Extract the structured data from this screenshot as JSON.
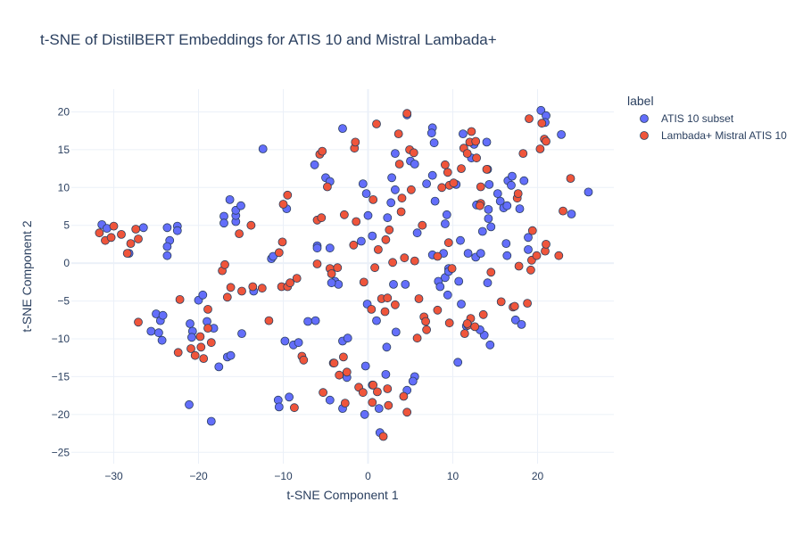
{
  "chart_data": {
    "type": "scatter",
    "title": "t-SNE of DistilBERT Embeddings for ATIS 10 and Mistral Lambada+",
    "xlabel": "t-SNE Component 1",
    "ylabel": "t-SNE Component 2",
    "xlim": [
      -35,
      29
    ],
    "ylim": [
      -26.5,
      23
    ],
    "x_ticks": [
      -30,
      -20,
      -10,
      0,
      10,
      20
    ],
    "x_tick_labels": [
      "−30",
      "−20",
      "−10",
      "0",
      "10",
      "20"
    ],
    "y_ticks": [
      -25,
      -20,
      -15,
      -10,
      -5,
      0,
      5,
      10,
      15,
      20
    ],
    "y_tick_labels": [
      "−25",
      "−20",
      "−15",
      "−10",
      "−5",
      "0",
      "5",
      "10",
      "15",
      "20"
    ],
    "grid": true,
    "legend": {
      "title": "label",
      "placement": "right"
    },
    "series": [
      {
        "name": "ATIS 10 subset",
        "color": "#636efa",
        "points": [
          [
            -31.4,
            5.1
          ],
          [
            -30.8,
            4.6
          ],
          [
            -28.2,
            1.3
          ],
          [
            -26.5,
            4.7
          ],
          [
            -23.7,
            4.7
          ],
          [
            -23.4,
            3.0
          ],
          [
            -23.7,
            2.2
          ],
          [
            -23.7,
            1.0
          ],
          [
            -22.5,
            4.9
          ],
          [
            -22.5,
            4.3
          ],
          [
            -17.0,
            6.2
          ],
          [
            -17.0,
            5.3
          ],
          [
            -15.6,
            5.5
          ],
          [
            -15.6,
            6.3
          ],
          [
            -15.6,
            7.0
          ],
          [
            -15.0,
            7.6
          ],
          [
            -16.3,
            8.4
          ],
          [
            -12.4,
            15.1
          ],
          [
            -11.4,
            0.6
          ],
          [
            -11.2,
            0.9
          ],
          [
            -13.5,
            -3.7
          ],
          [
            -9.6,
            7.2
          ],
          [
            -25.0,
            -6.7
          ],
          [
            -24.5,
            -7.6
          ],
          [
            -24.2,
            -6.9
          ],
          [
            -25.6,
            -9.0
          ],
          [
            -24.7,
            -9.2
          ],
          [
            -24.3,
            -10.2
          ],
          [
            -20.0,
            -4.9
          ],
          [
            -19.5,
            -4.2
          ],
          [
            -21.0,
            -8.0
          ],
          [
            -20.7,
            -9.0
          ],
          [
            -20.8,
            -9.8
          ],
          [
            -19.0,
            -7.7
          ],
          [
            -18.2,
            -8.6
          ],
          [
            -17.6,
            -13.7
          ],
          [
            -16.6,
            -12.4
          ],
          [
            -16.2,
            -12.2
          ],
          [
            -14.9,
            -9.3
          ],
          [
            -21.1,
            -18.7
          ],
          [
            -18.5,
            -20.9
          ],
          [
            -9.8,
            -10.3
          ],
          [
            -8.8,
            -10.8
          ],
          [
            -8.2,
            -10.5
          ],
          [
            -10.6,
            -18.1
          ],
          [
            -10.5,
            -19.0
          ],
          [
            -9.3,
            -17.7
          ],
          [
            -7.1,
            -7.7
          ],
          [
            -6.2,
            -7.6
          ],
          [
            -6.0,
            2.3
          ],
          [
            -6.0,
            2.0
          ],
          [
            -4.5,
            2.0
          ],
          [
            -3.9,
            -2.4
          ],
          [
            -3.5,
            -2.8
          ],
          [
            -4.3,
            -2.6
          ],
          [
            -3.0,
            17.8
          ],
          [
            -5.0,
            11.3
          ],
          [
            -6.3,
            13.0
          ],
          [
            -4.5,
            10.8
          ],
          [
            -3.0,
            -10.3
          ],
          [
            -2.4,
            -9.9
          ],
          [
            -4.5,
            -18.1
          ],
          [
            -3.0,
            -19.2
          ],
          [
            -2.5,
            -15.1
          ],
          [
            -0.8,
            2.9
          ],
          [
            -0.6,
            10.5
          ],
          [
            -0.2,
            9.2
          ],
          [
            0.0,
            6.3
          ],
          [
            0.5,
            3.6
          ],
          [
            0.5,
            -16.1
          ],
          [
            -0.3,
            -13.6
          ],
          [
            -0.4,
            -20.0
          ],
          [
            -0.1,
            -5.4
          ],
          [
            1.0,
            -7.6
          ],
          [
            1.3,
            -19.2
          ],
          [
            1.4,
            -22.4
          ],
          [
            2.2,
            -11.1
          ],
          [
            2.1,
            -14.7
          ],
          [
            2.3,
            6.0
          ],
          [
            2.8,
            11.3
          ],
          [
            2.7,
            8.0
          ],
          [
            3.0,
            -2.8
          ],
          [
            3.3,
            -9.1
          ],
          [
            3.2,
            14.5
          ],
          [
            3.2,
            9.7
          ],
          [
            4.6,
            19.6
          ],
          [
            4.4,
            -2.8
          ],
          [
            5.0,
            13.5
          ],
          [
            5.5,
            13.1
          ],
          [
            5.5,
            -15.0
          ],
          [
            5.3,
            -15.6
          ],
          [
            4.6,
            -16.8
          ],
          [
            5.8,
            4.0
          ],
          [
            6.9,
            10.5
          ],
          [
            7.6,
            17.9
          ],
          [
            7.5,
            17.2
          ],
          [
            7.8,
            15.9
          ],
          [
            7.6,
            11.6
          ],
          [
            7.6,
            1.1
          ],
          [
            7.9,
            8.2
          ],
          [
            8.3,
            -2.4
          ],
          [
            8.9,
            1.3
          ],
          [
            8.5,
            -3.1
          ],
          [
            9.1,
            -1.9
          ],
          [
            9.1,
            5.2
          ],
          [
            9.3,
            6.4
          ],
          [
            9.4,
            -4.2
          ],
          [
            9.5,
            -0.7
          ],
          [
            9.5,
            -1.1
          ],
          [
            10.4,
            10.4
          ],
          [
            10.7,
            -2.4
          ],
          [
            10.9,
            3.0
          ],
          [
            11.0,
            -5.4
          ],
          [
            11.2,
            17.1
          ],
          [
            11.8,
            1.3
          ],
          [
            12.2,
            13.9
          ],
          [
            12.5,
            15.7
          ],
          [
            12.7,
            0.8
          ],
          [
            12.8,
            7.7
          ],
          [
            13.3,
            1.3
          ],
          [
            13.5,
            4.2
          ],
          [
            13.7,
            -9.5
          ],
          [
            13.2,
            -8.8
          ],
          [
            14.0,
            16.0
          ],
          [
            14.1,
            12.4
          ],
          [
            14.3,
            10.4
          ],
          [
            14.2,
            7.1
          ],
          [
            14.2,
            5.9
          ],
          [
            14.5,
            4.8
          ],
          [
            14.1,
            -2.6
          ],
          [
            14.4,
            -10.8
          ],
          [
            15.3,
            9.2
          ],
          [
            15.6,
            8.2
          ],
          [
            16.0,
            7.3
          ],
          [
            16.5,
            10.9
          ],
          [
            16.9,
            10.3
          ],
          [
            16.4,
            7.6
          ],
          [
            16.3,
            2.6
          ],
          [
            17.0,
            11.5
          ],
          [
            16.4,
            1.0
          ],
          [
            17.9,
            7.2
          ],
          [
            18.4,
            10.9
          ],
          [
            18.9,
            3.4
          ],
          [
            18.9,
            1.8
          ],
          [
            17.4,
            -7.5
          ],
          [
            18.1,
            -8.1
          ],
          [
            20.4,
            20.2
          ],
          [
            21.0,
            19.5
          ],
          [
            20.9,
            18.6
          ],
          [
            22.8,
            17.0
          ],
          [
            24.0,
            6.5
          ],
          [
            26.0,
            9.4
          ],
          [
            10.6,
            -13.1
          ],
          [
            11.6,
            -8.3
          ]
        ]
      },
      {
        "name": "Lambada+ Mistral ATIS 10",
        "color": "#ef553b",
        "points": [
          [
            -31.7,
            4.0
          ],
          [
            -31.0,
            3.0
          ],
          [
            -30.3,
            3.4
          ],
          [
            -30.0,
            4.9
          ],
          [
            -29.1,
            3.8
          ],
          [
            -28.4,
            1.3
          ],
          [
            -28.0,
            2.6
          ],
          [
            -27.4,
            4.5
          ],
          [
            -27.1,
            3.2
          ],
          [
            -27.1,
            -7.8
          ],
          [
            -22.2,
            -4.8
          ],
          [
            -22.4,
            -11.8
          ],
          [
            -20.9,
            -11.3
          ],
          [
            -20.4,
            -12.2
          ],
          [
            -19.8,
            -9.7
          ],
          [
            -19.7,
            -11.1
          ],
          [
            -19.4,
            -12.6
          ],
          [
            -18.9,
            -6.1
          ],
          [
            -18.9,
            -8.6
          ],
          [
            -18.5,
            -10.5
          ],
          [
            -17.2,
            -1.0
          ],
          [
            -16.9,
            -0.2
          ],
          [
            -16.6,
            -4.5
          ],
          [
            -16.2,
            -3.2
          ],
          [
            -15.2,
            3.9
          ],
          [
            -14.9,
            -3.7
          ],
          [
            -13.8,
            5.0
          ],
          [
            -13.6,
            -3.1
          ],
          [
            -12.5,
            -3.3
          ],
          [
            -11.7,
            -7.6
          ],
          [
            -10.5,
            1.4
          ],
          [
            -10.2,
            -3.1
          ],
          [
            -10.1,
            2.8
          ],
          [
            -10.0,
            7.8
          ],
          [
            -9.5,
            9.0
          ],
          [
            -9.5,
            -3.1
          ],
          [
            -9.2,
            -2.6
          ],
          [
            -8.7,
            -19.1
          ],
          [
            -8.4,
            -2.0
          ],
          [
            -7.8,
            -12.3
          ],
          [
            -7.6,
            -12.8
          ],
          [
            -6.0,
            -0.1
          ],
          [
            -6.0,
            5.7
          ],
          [
            -5.7,
            14.4
          ],
          [
            -5.4,
            14.8
          ],
          [
            -5.5,
            6.0
          ],
          [
            -5.3,
            -17.1
          ],
          [
            -4.8,
            10.1
          ],
          [
            -4.5,
            -0.7
          ],
          [
            -4.3,
            -1.4
          ],
          [
            -4.1,
            -13.2
          ],
          [
            -4.0,
            -13.2
          ],
          [
            -3.6,
            -0.6
          ],
          [
            -3.4,
            -14.8
          ],
          [
            -2.9,
            -12.4
          ],
          [
            -2.8,
            6.4
          ],
          [
            -2.5,
            -14.4
          ],
          [
            -2.7,
            -18.5
          ],
          [
            -1.6,
            15.2
          ],
          [
            -1.5,
            16.0
          ],
          [
            -1.4,
            5.5
          ],
          [
            -1.7,
            2.4
          ],
          [
            -1.1,
            -16.4
          ],
          [
            -0.5,
            -2.5
          ],
          [
            -0.6,
            -17.1
          ],
          [
            0.4,
            -6.1
          ],
          [
            0.5,
            -18.4
          ],
          [
            1.0,
            18.4
          ],
          [
            0.6,
            8.4
          ],
          [
            0.8,
            -0.6
          ],
          [
            0.6,
            -16.1
          ],
          [
            1.1,
            -17.0
          ],
          [
            1.2,
            1.8
          ],
          [
            1.6,
            -4.7
          ],
          [
            1.8,
            -22.9
          ],
          [
            2.0,
            -6.4
          ],
          [
            2.1,
            3.1
          ],
          [
            2.3,
            -16.6
          ],
          [
            2.3,
            -4.6
          ],
          [
            2.4,
            -18.8
          ],
          [
            2.5,
            4.4
          ],
          [
            2.9,
            0.1
          ],
          [
            3.2,
            -5.5
          ],
          [
            3.6,
            17.1
          ],
          [
            3.7,
            13.1
          ],
          [
            3.9,
            6.8
          ],
          [
            4.0,
            8.6
          ],
          [
            4.2,
            -17.6
          ],
          [
            4.3,
            0.7
          ],
          [
            4.6,
            19.8
          ],
          [
            4.6,
            -19.7
          ],
          [
            4.9,
            15.0
          ],
          [
            5.1,
            9.7
          ],
          [
            5.5,
            0.3
          ],
          [
            5.4,
            14.6
          ],
          [
            5.8,
            -9.9
          ],
          [
            6.0,
            -4.7
          ],
          [
            6.4,
            5.0
          ],
          [
            6.6,
            -7.1
          ],
          [
            6.8,
            -7.7
          ],
          [
            6.9,
            -8.8
          ],
          [
            8.2,
            0.9
          ],
          [
            8.2,
            -6.2
          ],
          [
            8.7,
            10.0
          ],
          [
            9.1,
            13.0
          ],
          [
            9.4,
            12.0
          ],
          [
            9.5,
            2.7
          ],
          [
            9.6,
            10.3
          ],
          [
            9.6,
            -7.9
          ],
          [
            9.9,
            -0.7
          ],
          [
            10.1,
            10.6
          ],
          [
            11.0,
            12.5
          ],
          [
            11.3,
            15.2
          ],
          [
            11.4,
            -9.3
          ],
          [
            11.7,
            14.5
          ],
          [
            11.8,
            -8.2
          ],
          [
            12.1,
            -7.3
          ],
          [
            12.0,
            16.0
          ],
          [
            12.2,
            17.4
          ],
          [
            12.6,
            -8.4
          ],
          [
            12.7,
            16.1
          ],
          [
            12.8,
            13.9
          ],
          [
            13.3,
            10.1
          ],
          [
            13.3,
            7.9
          ],
          [
            13.2,
            7.6
          ],
          [
            13.6,
            -6.8
          ],
          [
            14.0,
            12.4
          ],
          [
            14.5,
            -1.2
          ],
          [
            15.7,
            -5.1
          ],
          [
            17.1,
            -5.8
          ],
          [
            17.3,
            -5.7
          ],
          [
            17.6,
            8.6
          ],
          [
            17.7,
            9.2
          ],
          [
            17.8,
            -0.4
          ],
          [
            18.3,
            14.5
          ],
          [
            18.8,
            -5.3
          ],
          [
            19.3,
            0.4
          ],
          [
            19.2,
            -0.9
          ],
          [
            19.4,
            4.3
          ],
          [
            19.9,
            1.0
          ],
          [
            19.0,
            19.1
          ],
          [
            20.3,
            15.1
          ],
          [
            20.5,
            18.5
          ],
          [
            20.8,
            16.4
          ],
          [
            20.9,
            1.6
          ],
          [
            21.0,
            2.5
          ],
          [
            21.0,
            16.1
          ],
          [
            22.5,
            1.0
          ],
          [
            23.0,
            6.9
          ],
          [
            23.9,
            11.2
          ],
          [
            11.7,
            -8.0
          ]
        ]
      }
    ]
  }
}
